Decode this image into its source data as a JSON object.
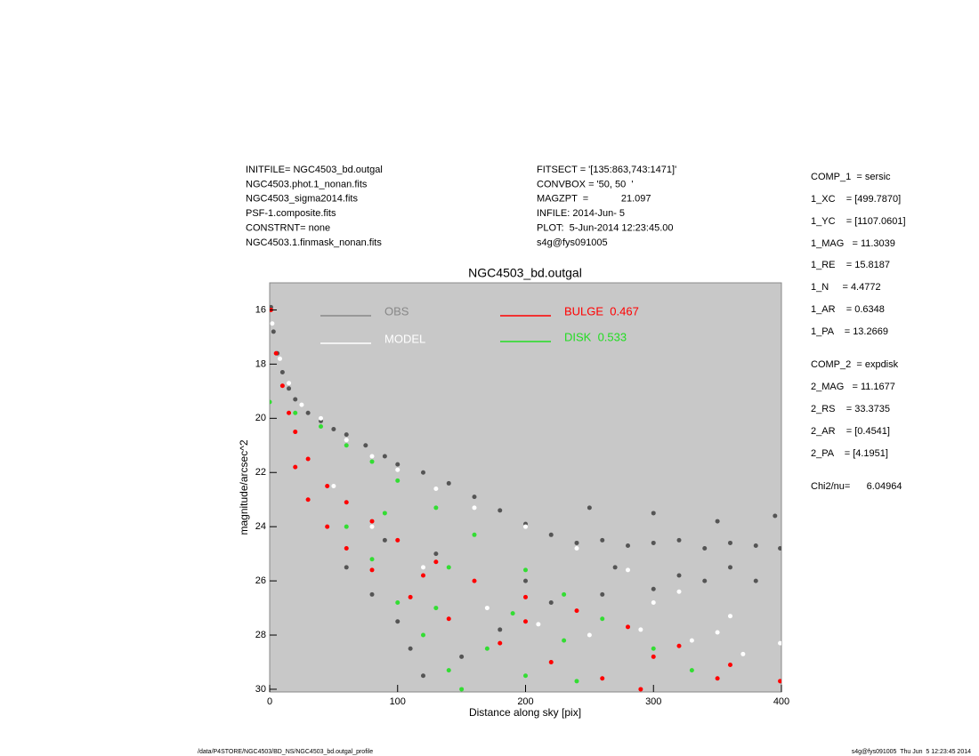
{
  "header_left": [
    "INITFILE= NGC4503_bd.outgal",
    "NGC4503.phot.1_nonan.fits",
    "NGC4503_sigma2014.fits",
    "PSF-1.composite.fits",
    "CONSTRNT= none",
    "NGC4503.1.finmask_nonan.fits"
  ],
  "header_middle": [
    "FITSECT = '[135:863,743:1471]'",
    "CONVBOX = '50, 50  '",
    "MAGZPT  =            21.097",
    "INFILE: 2014-Jun- 5",
    "PLOT:  5-Jun-2014 12:23:45.00",
    "s4g@fys091005"
  ],
  "parameters": [
    "COMP_1  = sersic",
    "1_XC    = [499.7870]",
    "1_YC    = [1107.0601]",
    "1_MAG   = 11.3039",
    "1_RE    = 15.8187",
    "1_N     = 4.4772",
    "1_AR    = 0.6348",
    "1_PA    = 13.2669",
    "COMP_2  = expdisk",
    "2_MAG   = 11.1677",
    "2_RS    = 33.3735",
    "2_AR    = [0.4541]",
    "2_PA    = [4.1951]",
    "Chi2/nu=      6.04964"
  ],
  "footer_left": "/data/P4STORE/NGC4503/BD_NS/NGC4503_bd.outgal_profile",
  "footer_right": "s4g@fys091005  Thu Jun  5 12:23:45 2014",
  "chart_data": {
    "type": "scatter",
    "title": "NGC4503_bd.outgal",
    "x_label": "Distance along sky [pix]",
    "y_label": "magnitude/arcsec^2",
    "xlim": [
      0,
      400
    ],
    "xticks": [
      0,
      100,
      200,
      300,
      400
    ],
    "ylim": [
      30.1,
      15.0
    ],
    "yticks": [
      16,
      18,
      20,
      22,
      24,
      26,
      28,
      30
    ],
    "background": "#c8c8c8",
    "series": [
      {
        "name": "OBS",
        "color": "#555555",
        "legend_color": "#888888",
        "x": [
          1,
          3,
          6,
          10,
          15,
          20,
          30,
          40,
          50,
          60,
          75,
          90,
          100,
          120,
          140,
          160,
          180,
          200,
          220,
          240,
          260,
          280,
          300,
          320,
          340,
          360,
          380,
          399,
          80,
          100,
          110,
          120,
          150,
          180,
          220,
          260,
          300,
          340,
          380,
          250,
          300,
          350,
          395,
          270,
          320,
          360,
          60,
          90,
          130,
          200
        ],
        "values": [
          15.9,
          16.8,
          17.6,
          18.3,
          18.9,
          19.3,
          19.8,
          20.1,
          20.4,
          20.6,
          21.0,
          21.4,
          21.7,
          22.0,
          22.4,
          22.9,
          23.4,
          23.9,
          24.3,
          24.6,
          24.5,
          24.7,
          24.6,
          24.5,
          24.8,
          24.6,
          24.7,
          24.8,
          26.5,
          27.5,
          28.5,
          29.5,
          28.8,
          27.8,
          26.8,
          26.5,
          26.3,
          26.0,
          26.0,
          23.3,
          23.5,
          23.8,
          23.6,
          25.5,
          25.8,
          25.5,
          25.5,
          24.5,
          25.0,
          26.0
        ]
      },
      {
        "name": "MODEL",
        "color": "#ffffff",
        "legend_color": "#ffffff",
        "x": [
          2,
          8,
          15,
          25,
          40,
          60,
          80,
          100,
          130,
          160,
          200,
          240,
          280,
          320,
          360,
          399,
          50,
          80,
          120,
          170,
          210,
          250,
          290,
          330,
          370,
          300,
          350
        ],
        "values": [
          16.5,
          17.8,
          18.7,
          19.5,
          20.0,
          20.8,
          21.4,
          21.9,
          22.6,
          23.3,
          24.0,
          24.8,
          25.6,
          26.4,
          27.3,
          28.3,
          22.5,
          24.0,
          25.5,
          27.0,
          27.6,
          28.0,
          27.8,
          28.2,
          28.7,
          26.8,
          27.9
        ]
      },
      {
        "name": "DISK  0.533",
        "color": "#33dd33",
        "legend_color": "#22dd22",
        "x": [
          0,
          20,
          40,
          60,
          80,
          100,
          130,
          160,
          200,
          230,
          260,
          300,
          330,
          60,
          80,
          100,
          120,
          140,
          150,
          130,
          170,
          200,
          240,
          90,
          140,
          190,
          230
        ],
        "values": [
          19.4,
          19.8,
          20.3,
          21.0,
          21.6,
          22.3,
          23.3,
          24.3,
          25.6,
          26.5,
          27.4,
          28.5,
          29.3,
          24.0,
          25.2,
          26.8,
          28.0,
          29.3,
          30.0,
          27.0,
          28.5,
          29.5,
          29.7,
          23.5,
          25.5,
          27.2,
          28.2
        ]
      },
      {
        "name": "BULGE  0.467",
        "color": "#ff0000",
        "legend_color": "#ff0000",
        "x": [
          1,
          5,
          10,
          15,
          20,
          30,
          45,
          60,
          80,
          100,
          130,
          160,
          200,
          240,
          280,
          320,
          360,
          399,
          20,
          30,
          45,
          60,
          80,
          110,
          140,
          180,
          220,
          260,
          290,
          120,
          200,
          300,
          350
        ],
        "values": [
          16.0,
          17.6,
          18.8,
          19.8,
          20.5,
          21.5,
          22.5,
          23.1,
          23.8,
          24.5,
          25.3,
          26.0,
          26.6,
          27.1,
          27.7,
          28.4,
          29.1,
          29.7,
          21.8,
          23.0,
          24.0,
          24.8,
          25.6,
          26.6,
          27.4,
          28.3,
          29.0,
          29.6,
          30.0,
          25.8,
          27.5,
          28.8,
          29.6
        ]
      }
    ]
  }
}
